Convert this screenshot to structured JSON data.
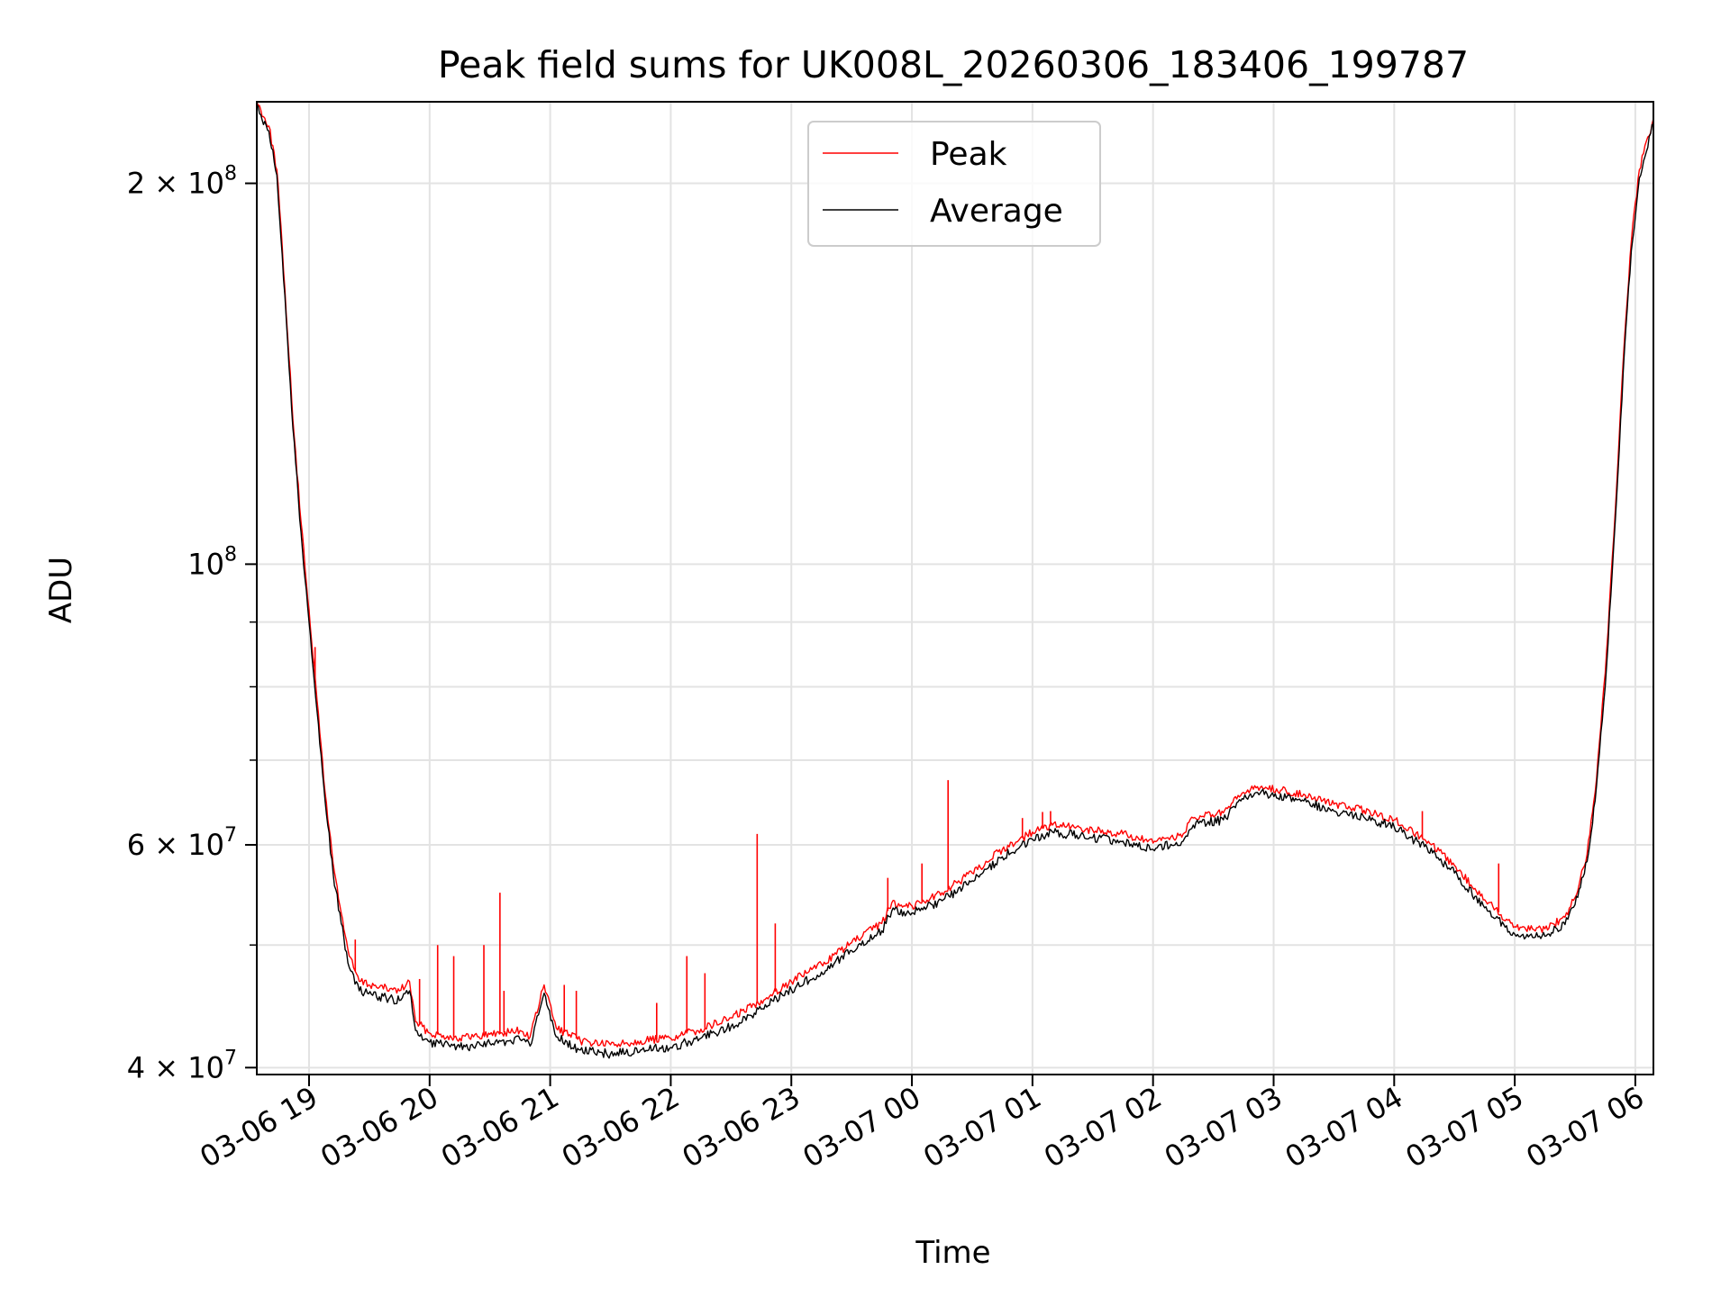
{
  "chart_data": {
    "type": "line",
    "title": "Peak field sums for UK008L_20260306_183406_199787",
    "xlabel": "Time",
    "ylabel": "ADU",
    "y_scale": "log",
    "ylim": [
      39500000,
      232000000
    ],
    "xlim": [
      "2026-03-06 18:34",
      "2026-03-07 06:09"
    ],
    "grid": true,
    "legend_position": "upper center",
    "x_ticks": [
      {
        "t": "2026-03-06 19:00",
        "label": "03-06 19"
      },
      {
        "t": "2026-03-06 20:00",
        "label": "03-06 20"
      },
      {
        "t": "2026-03-06 21:00",
        "label": "03-06 21"
      },
      {
        "t": "2026-03-06 22:00",
        "label": "03-06 22"
      },
      {
        "t": "2026-03-06 23:00",
        "label": "03-06 23"
      },
      {
        "t": "2026-03-07 00:00",
        "label": "03-07 00"
      },
      {
        "t": "2026-03-07 01:00",
        "label": "03-07 01"
      },
      {
        "t": "2026-03-07 02:00",
        "label": "03-07 02"
      },
      {
        "t": "2026-03-07 03:00",
        "label": "03-07 03"
      },
      {
        "t": "2026-03-07 04:00",
        "label": "03-07 04"
      },
      {
        "t": "2026-03-07 05:00",
        "label": "03-07 05"
      },
      {
        "t": "2026-03-07 06:00",
        "label": "03-07 06"
      }
    ],
    "y_ticks_major": [
      {
        "value": 40000000,
        "mantissa": "4",
        "exponent": "7"
      },
      {
        "value": 60000000,
        "mantissa": "6",
        "exponent": "7"
      },
      {
        "value": 100000000,
        "mantissa": "",
        "exponent": "8"
      },
      {
        "value": 200000000,
        "mantissa": "2",
        "exponent": "8"
      }
    ],
    "y_ticks_minor": [
      50000000,
      70000000,
      80000000,
      90000000
    ],
    "series": [
      {
        "name": "Peak",
        "color": "#ff0000",
        "points": [
          [
            "2026-03-06 18:34",
            232000000
          ],
          [
            "2026-03-06 18:40",
            222000000
          ],
          [
            "2026-03-06 18:44",
            205000000
          ],
          [
            "2026-03-06 18:48",
            165000000
          ],
          [
            "2026-03-06 18:52",
            130000000
          ],
          [
            "2026-03-06 18:56",
            108000000
          ],
          [
            "2026-03-06 19:00",
            92000000
          ],
          [
            "2026-03-06 19:04",
            78000000
          ],
          [
            "2026-03-06 19:08",
            66000000
          ],
          [
            "2026-03-06 19:12",
            58000000
          ],
          [
            "2026-03-06 19:16",
            53000000
          ],
          [
            "2026-03-06 19:20",
            49000000
          ],
          [
            "2026-03-06 19:25",
            46800000
          ],
          [
            "2026-03-06 19:35",
            46300000
          ],
          [
            "2026-03-06 19:45",
            46000000
          ],
          [
            "2026-03-06 19:50",
            46800000
          ],
          [
            "2026-03-06 19:53",
            43500000
          ],
          [
            "2026-03-06 20:00",
            42600000
          ],
          [
            "2026-03-06 20:15",
            42200000
          ],
          [
            "2026-03-06 20:30",
            42500000
          ],
          [
            "2026-03-06 20:45",
            42800000
          ],
          [
            "2026-03-06 20:50",
            42300000
          ],
          [
            "2026-03-06 20:57",
            46500000
          ],
          [
            "2026-03-06 21:03",
            43000000
          ],
          [
            "2026-03-06 21:15",
            42000000
          ],
          [
            "2026-03-06 21:30",
            41700000
          ],
          [
            "2026-03-06 21:45",
            42000000
          ],
          [
            "2026-03-06 22:00",
            42200000
          ],
          [
            "2026-03-06 22:15",
            42900000
          ],
          [
            "2026-03-06 22:30",
            43800000
          ],
          [
            "2026-03-06 22:45",
            45200000
          ],
          [
            "2026-03-06 23:00",
            46800000
          ],
          [
            "2026-03-06 23:15",
            48300000
          ],
          [
            "2026-03-06 23:30",
            50200000
          ],
          [
            "2026-03-06 23:45",
            52000000
          ],
          [
            "2026-03-06 23:50",
            54000000
          ],
          [
            "2026-03-07 00:00",
            53700000
          ],
          [
            "2026-03-07 00:15",
            55000000
          ],
          [
            "2026-03-07 00:30",
            57000000
          ],
          [
            "2026-03-07 00:45",
            59500000
          ],
          [
            "2026-03-07 01:00",
            61400000
          ],
          [
            "2026-03-07 01:10",
            62200000
          ],
          [
            "2026-03-07 01:30",
            61600000
          ],
          [
            "2026-03-07 01:45",
            61200000
          ],
          [
            "2026-03-07 02:00",
            60200000
          ],
          [
            "2026-03-07 02:15",
            61200000
          ],
          [
            "2026-03-07 02:20",
            63000000
          ],
          [
            "2026-03-07 02:35",
            63600000
          ],
          [
            "2026-03-07 02:45",
            66000000
          ],
          [
            "2026-03-07 02:52",
            66700000
          ],
          [
            "2026-03-07 03:15",
            65800000
          ],
          [
            "2026-03-07 03:30",
            64600000
          ],
          [
            "2026-03-07 03:45",
            63900000
          ],
          [
            "2026-03-07 04:00",
            62800000
          ],
          [
            "2026-03-07 04:15",
            60600000
          ],
          [
            "2026-03-07 04:30",
            57800000
          ],
          [
            "2026-03-07 04:45",
            54300000
          ],
          [
            "2026-03-07 05:00",
            51700000
          ],
          [
            "2026-03-07 05:15",
            51500000
          ],
          [
            "2026-03-07 05:25",
            52600000
          ],
          [
            "2026-03-07 05:30",
            54500000
          ],
          [
            "2026-03-07 05:36",
            59000000
          ],
          [
            "2026-03-07 05:40",
            66000000
          ],
          [
            "2026-03-07 05:45",
            82000000
          ],
          [
            "2026-03-07 05:50",
            110000000
          ],
          [
            "2026-03-07 05:54",
            145000000
          ],
          [
            "2026-03-07 05:58",
            180000000
          ],
          [
            "2026-03-07 06:02",
            205000000
          ],
          [
            "2026-03-07 06:09",
            225000000
          ]
        ]
      },
      {
        "name": "Average",
        "color": "#000000",
        "points": [
          [
            "2026-03-06 18:34",
            230000000
          ],
          [
            "2026-03-06 18:40",
            220000000
          ],
          [
            "2026-03-06 18:44",
            203000000
          ],
          [
            "2026-03-06 18:48",
            163000000
          ],
          [
            "2026-03-06 18:52",
            128000000
          ],
          [
            "2026-03-06 18:56",
            106000000
          ],
          [
            "2026-03-06 19:00",
            90000000
          ],
          [
            "2026-03-06 19:04",
            76500000
          ],
          [
            "2026-03-06 19:08",
            65000000
          ],
          [
            "2026-03-06 19:12",
            57000000
          ],
          [
            "2026-03-06 19:16",
            52000000
          ],
          [
            "2026-03-06 19:20",
            48000000
          ],
          [
            "2026-03-06 19:25",
            46000000
          ],
          [
            "2026-03-06 19:35",
            45500000
          ],
          [
            "2026-03-06 19:45",
            45200000
          ],
          [
            "2026-03-06 19:50",
            46000000
          ],
          [
            "2026-03-06 19:53",
            42800000
          ],
          [
            "2026-03-06 20:00",
            41900000
          ],
          [
            "2026-03-06 20:15",
            41500000
          ],
          [
            "2026-03-06 20:30",
            41800000
          ],
          [
            "2026-03-06 20:45",
            42100000
          ],
          [
            "2026-03-06 20:50",
            41600000
          ],
          [
            "2026-03-06 20:57",
            45800000
          ],
          [
            "2026-03-06 21:03",
            42300000
          ],
          [
            "2026-03-06 21:15",
            41300000
          ],
          [
            "2026-03-06 21:30",
            41000000
          ],
          [
            "2026-03-06 21:45",
            41300000
          ],
          [
            "2026-03-06 22:00",
            41500000
          ],
          [
            "2026-03-06 22:15",
            42200000
          ],
          [
            "2026-03-06 22:30",
            43100000
          ],
          [
            "2026-03-06 22:45",
            44500000
          ],
          [
            "2026-03-06 23:00",
            46100000
          ],
          [
            "2026-03-06 23:15",
            47600000
          ],
          [
            "2026-03-06 23:30",
            49500000
          ],
          [
            "2026-03-06 23:45",
            51300000
          ],
          [
            "2026-03-06 23:50",
            53200000
          ],
          [
            "2026-03-07 00:00",
            53000000
          ],
          [
            "2026-03-07 00:15",
            54200000
          ],
          [
            "2026-03-07 00:30",
            56200000
          ],
          [
            "2026-03-07 00:45",
            58700000
          ],
          [
            "2026-03-07 01:00",
            60600000
          ],
          [
            "2026-03-07 01:10",
            61400000
          ],
          [
            "2026-03-07 01:30",
            60800000
          ],
          [
            "2026-03-07 01:45",
            60400000
          ],
          [
            "2026-03-07 02:00",
            59500000
          ],
          [
            "2026-03-07 02:15",
            60400000
          ],
          [
            "2026-03-07 02:20",
            62200000
          ],
          [
            "2026-03-07 02:35",
            62800000
          ],
          [
            "2026-03-07 02:45",
            65200000
          ],
          [
            "2026-03-07 02:52",
            66000000
          ],
          [
            "2026-03-07 03:15",
            65000000
          ],
          [
            "2026-03-07 03:30",
            63800000
          ],
          [
            "2026-03-07 03:45",
            63100000
          ],
          [
            "2026-03-07 04:00",
            62000000
          ],
          [
            "2026-03-07 04:15",
            59800000
          ],
          [
            "2026-03-07 04:30",
            57000000
          ],
          [
            "2026-03-07 04:45",
            53500000
          ],
          [
            "2026-03-07 05:00",
            51000000
          ],
          [
            "2026-03-07 05:15",
            50800000
          ],
          [
            "2026-03-07 05:25",
            51900000
          ],
          [
            "2026-03-07 05:30",
            53800000
          ],
          [
            "2026-03-07 05:36",
            58200000
          ],
          [
            "2026-03-07 05:40",
            65000000
          ],
          [
            "2026-03-07 05:45",
            80000000
          ],
          [
            "2026-03-07 05:50",
            108000000
          ],
          [
            "2026-03-07 05:54",
            142000000
          ],
          [
            "2026-03-07 05:58",
            177000000
          ],
          [
            "2026-03-07 06:02",
            202000000
          ],
          [
            "2026-03-07 06:09",
            223000000
          ]
        ]
      }
    ],
    "spikes": [
      [
        "2026-03-06 19:03",
        86000000
      ],
      [
        "2026-03-06 19:23",
        50500000
      ],
      [
        "2026-03-06 19:55",
        47000000
      ],
      [
        "2026-03-06 20:04",
        50000000
      ],
      [
        "2026-03-06 20:12",
        49000000
      ],
      [
        "2026-03-06 20:27",
        50000000
      ],
      [
        "2026-03-06 20:35",
        55000000
      ],
      [
        "2026-03-06 20:37",
        46000000
      ],
      [
        "2026-03-06 21:07",
        46500000
      ],
      [
        "2026-03-06 21:13",
        46000000
      ],
      [
        "2026-03-06 21:53",
        45000000
      ],
      [
        "2026-03-06 22:08",
        49000000
      ],
      [
        "2026-03-06 22:17",
        47500000
      ],
      [
        "2026-03-06 22:43",
        61200000
      ],
      [
        "2026-03-06 22:52",
        52000000
      ],
      [
        "2026-03-06 23:48",
        56500000
      ],
      [
        "2026-03-07 00:05",
        58000000
      ],
      [
        "2026-03-07 00:18",
        67500000
      ],
      [
        "2026-03-07 00:55",
        63000000
      ],
      [
        "2026-03-07 01:05",
        63700000
      ],
      [
        "2026-03-07 01:09",
        63800000
      ],
      [
        "2026-03-07 04:14",
        63800000
      ],
      [
        "2026-03-07 04:52",
        58000000
      ],
      [
        "2026-03-07 05:38",
        62500000
      ]
    ]
  }
}
